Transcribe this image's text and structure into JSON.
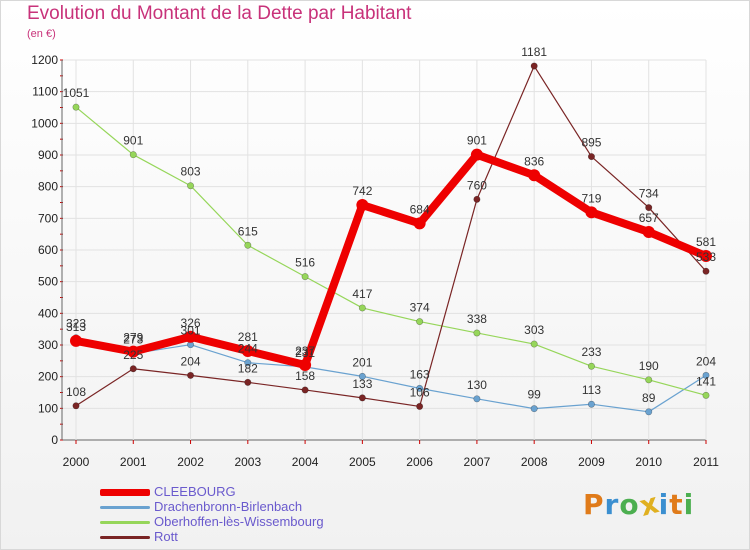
{
  "title": "Evolution du Montant de la Dette par Habitant",
  "unit_label": "(en €)",
  "logo_text": "Proxiti",
  "colors": {
    "title": "#c8327a",
    "cleebourg": "#ee0000",
    "drachenbronn": "#6aa2d0",
    "oberhoffen": "#96d65a",
    "rott": "#7a2525"
  },
  "chart_data": {
    "type": "line",
    "title": "Evolution du Montant de la Dette par Habitant",
    "ylabel": "(en €)",
    "xlabel": "",
    "x": [
      "2000",
      "2001",
      "2002",
      "2003",
      "2004",
      "2005",
      "2006",
      "2007",
      "2008",
      "2009",
      "2010",
      "2011"
    ],
    "ylim": [
      0,
      1200
    ],
    "yticks": [
      "0",
      "100",
      "200",
      "300",
      "400",
      "500",
      "600",
      "700",
      "800",
      "900",
      "1000",
      "1100",
      "1200"
    ],
    "series": [
      {
        "name": "CLEEBOURG",
        "color": "#ee0000",
        "values": [
          313,
          279,
          326,
          281,
          237,
          742,
          684,
          901,
          836,
          719,
          657,
          581
        ]
      },
      {
        "name": "Drachenbronn-Birlenbach",
        "color": "#6aa2d0",
        "values": [
          323,
          273,
          301,
          244,
          231,
          201,
          163,
          130,
          99,
          113,
          89,
          204
        ]
      },
      {
        "name": "Oberhoffen-lès-Wissembourg",
        "color": "#96d65a",
        "values": [
          1051,
          901,
          803,
          615,
          516,
          417,
          374,
          338,
          303,
          233,
          190,
          141
        ]
      },
      {
        "name": "Rott",
        "color": "#7a2525",
        "values": [
          108,
          225,
          204,
          182,
          158,
          133,
          106,
          760,
          1181,
          895,
          734,
          533
        ]
      }
    ]
  }
}
